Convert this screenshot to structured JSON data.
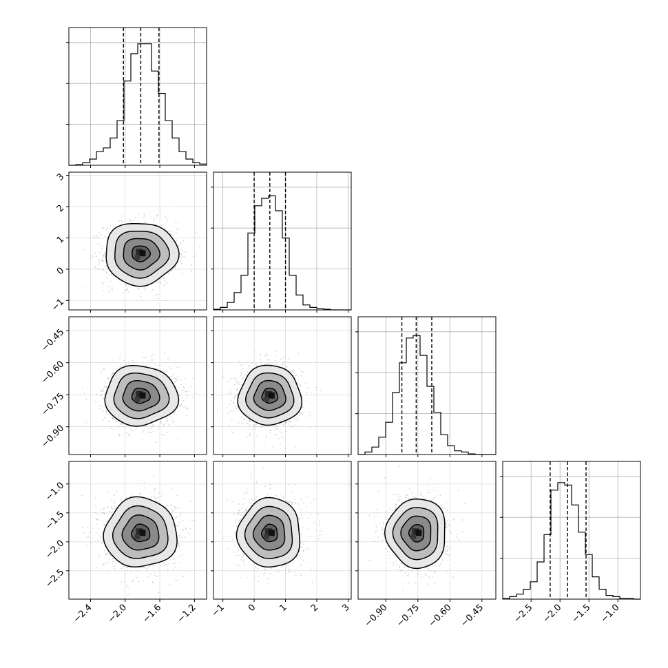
{
  "chart_data": {
    "type": "corner",
    "grid": true,
    "parameters": [
      {
        "range": [
          -2.65,
          -1.06
        ],
        "ticks": [
          -2.4,
          -2.0,
          -1.6,
          -1.2
        ],
        "tick_labels": [
          "−2.4",
          "−2.0",
          "−1.6",
          "−1.2"
        ],
        "quantiles": [
          -2.02,
          -1.82,
          -1.61
        ],
        "hist": [
          0,
          0.005,
          0.02,
          0.05,
          0.11,
          0.14,
          0.22,
          0.36,
          0.68,
          0.9,
          0.98,
          0.98,
          0.76,
          0.58,
          0.36,
          0.22,
          0.11,
          0.05,
          0.02,
          0.01
        ]
      },
      {
        "range": [
          -1.3,
          3.1
        ],
        "ticks": [
          -1,
          0,
          1,
          2,
          3
        ],
        "tick_labels": [
          "−1",
          "0",
          "1",
          "2",
          "3"
        ],
        "quantiles": [
          0.0,
          0.5,
          1.0
        ],
        "hist": [
          0.005,
          0.02,
          0.06,
          0.14,
          0.28,
          0.62,
          0.84,
          0.9,
          0.92,
          0.8,
          0.58,
          0.28,
          0.12,
          0.04,
          0.02,
          0.01,
          0.005,
          0,
          0,
          0
        ]
      },
      {
        "range": [
          -1.03,
          -0.385
        ],
        "ticks": [
          -0.9,
          -0.75,
          -0.6,
          -0.45
        ],
        "tick_labels": [
          "−0.90",
          "−0.75",
          "−0.60",
          "−0.45"
        ],
        "quantiles": [
          -0.825,
          -0.758,
          -0.685
        ],
        "hist": [
          0,
          0.02,
          0.06,
          0.14,
          0.26,
          0.5,
          0.74,
          0.94,
          0.96,
          0.8,
          0.55,
          0.34,
          0.16,
          0.07,
          0.03,
          0.02,
          0.005,
          0,
          0,
          0
        ]
      },
      {
        "range": [
          -2.99,
          -0.61
        ],
        "ticks": [
          -2.5,
          -2.0,
          -1.5,
          -1.0
        ],
        "tick_labels": [
          "−2.5",
          "−2.0",
          "−1.5",
          "−1.0"
        ],
        "quantiles": [
          -2.17,
          -1.87,
          -1.55
        ],
        "hist": [
          0.005,
          0.02,
          0.04,
          0.08,
          0.14,
          0.3,
          0.52,
          0.88,
          0.94,
          0.92,
          0.76,
          0.54,
          0.36,
          0.18,
          0.08,
          0.03,
          0.02,
          0.005,
          0.005,
          0
        ]
      }
    ],
    "pairs": [
      {
        "x": 0,
        "y": 1,
        "center": [
          -1.82,
          0.5
        ],
        "sigma": [
          0.21,
          0.5
        ]
      },
      {
        "x": 0,
        "y": 2,
        "center": [
          -1.82,
          -0.755
        ],
        "sigma": [
          0.21,
          0.07
        ]
      },
      {
        "x": 1,
        "y": 2,
        "center": [
          0.5,
          -0.755
        ],
        "sigma": [
          0.5,
          0.07
        ]
      },
      {
        "x": 0,
        "y": 3,
        "center": [
          -1.82,
          -1.85
        ],
        "sigma": [
          0.21,
          0.3
        ]
      },
      {
        "x": 1,
        "y": 3,
        "center": [
          0.5,
          -1.85
        ],
        "sigma": [
          0.5,
          0.3
        ]
      },
      {
        "x": 2,
        "y": 3,
        "center": [
          -0.755,
          -1.85
        ],
        "sigma": [
          0.07,
          0.3
        ]
      }
    ]
  }
}
